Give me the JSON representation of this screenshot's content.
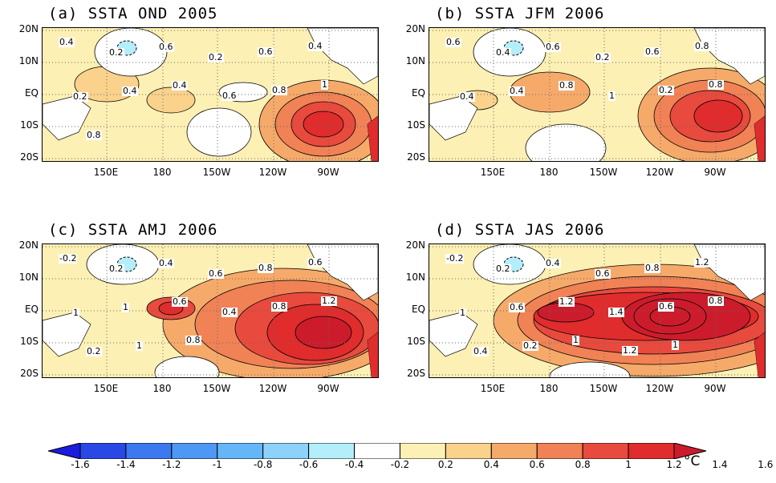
{
  "panels": [
    {
      "title": "(a) SSTA OND 2005",
      "contour_labels": [
        "0.4",
        "0.2",
        "0.6",
        "0.2",
        "0.6",
        "0.4",
        "0.2",
        "0.4",
        "0.4",
        "0.6",
        "0.8",
        "1",
        "0.8"
      ]
    },
    {
      "title": "(b) SSTA JFM 2006",
      "contour_labels": [
        "0.6",
        "0.4",
        "0.6",
        "0.2",
        "0.6",
        "0.8",
        "0.4",
        "0.4",
        "0.8",
        "1",
        "0.2",
        "0.8"
      ]
    },
    {
      "title": "(c) SSTA AMJ 2006",
      "contour_labels": [
        "-0.2",
        "0.2",
        "0.4",
        "0.6",
        "0.8",
        "0.6",
        "1",
        "1",
        "0.6",
        "0.4",
        "0.8",
        "1.2",
        "0.2",
        "1",
        "0.8"
      ]
    },
    {
      "title": "(d) SSTA JAS 2006",
      "contour_labels": [
        "-0.2",
        "0.2",
        "0.4",
        "0.6",
        "0.8",
        "1.2",
        "1",
        "0.6",
        "1.2",
        "1.4",
        "0.6",
        "0.8",
        "0.4",
        "0.2",
        "1",
        "1.2",
        "1"
      ]
    }
  ],
  "lat_labels": [
    "20N",
    "10N",
    "EQ",
    "10S",
    "20S"
  ],
  "lon_labels": [
    "150E",
    "180",
    "150W",
    "120W",
    "90W"
  ],
  "colorbar": {
    "ticks": [
      "-1.6",
      "-1.4",
      "-1.2",
      "-1",
      "-0.8",
      "-0.6",
      "-0.4",
      "-0.2",
      "0.2",
      "0.4",
      "0.6",
      "0.8",
      "1",
      "1.2",
      "1.4",
      "1.6"
    ],
    "colors": [
      "#1c1cdc",
      "#2a48e6",
      "#3c78f0",
      "#4c98f4",
      "#64b6f8",
      "#8cd2fa",
      "#b4eefa",
      "#ffffff",
      "#fdf0b4",
      "#fad28c",
      "#f6aa6a",
      "#f08256",
      "#e84a3e",
      "#e02c2c",
      "#cc1c2c"
    ],
    "unit": "°C"
  }
}
